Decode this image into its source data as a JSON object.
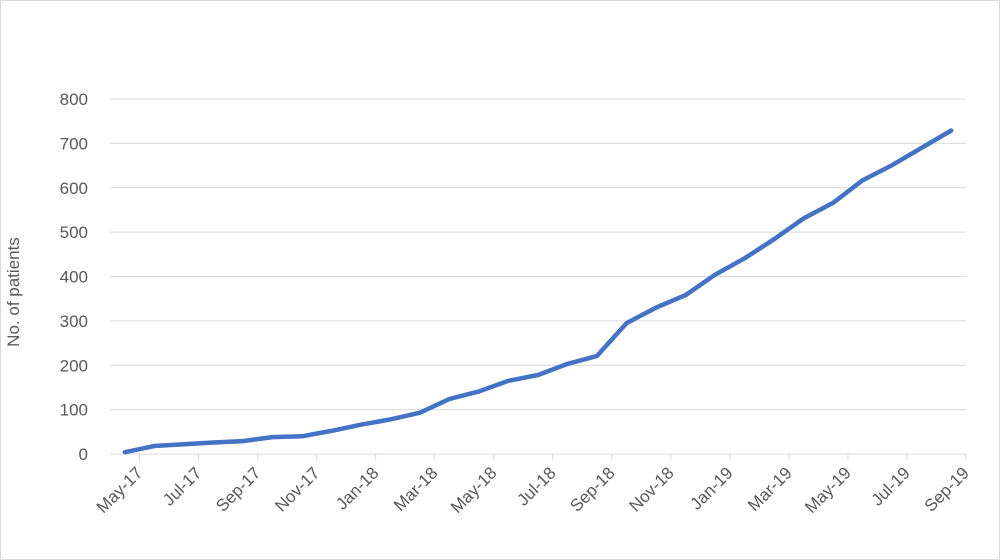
{
  "chart_data": {
    "type": "line",
    "title": "",
    "xlabel": "",
    "ylabel": "No. of patients",
    "ylim": [
      0,
      800
    ],
    "yticks": [
      0,
      100,
      200,
      300,
      400,
      500,
      600,
      700,
      800
    ],
    "xtick_labels": [
      "May-17",
      "Jul-17",
      "Sep-17",
      "Nov-17",
      "Jan-18",
      "Mar-18",
      "May-18",
      "Jul-18",
      "Sep-18",
      "Nov-18",
      "Jan-19",
      "Mar-19",
      "May-19",
      "Jul-19",
      "Sep-19"
    ],
    "grid": true,
    "legend": "none",
    "x": [
      "May-17",
      "Jun-17",
      "Jul-17",
      "Aug-17",
      "Sep-17",
      "Oct-17",
      "Nov-17",
      "Dec-17",
      "Jan-18",
      "Feb-18",
      "Mar-18",
      "Apr-18",
      "May-18",
      "Jun-18",
      "Jul-18",
      "Aug-18",
      "Sep-18",
      "Oct-18",
      "Nov-18",
      "Dec-18",
      "Jan-19",
      "Feb-19",
      "Mar-19",
      "Apr-19",
      "May-19",
      "Jun-19",
      "Jul-19",
      "Aug-19",
      "Sep-19"
    ],
    "series": [
      {
        "color": "#4472c4",
        "values": [
          4,
          18,
          22,
          26,
          29,
          38,
          40,
          52,
          66,
          78,
          93,
          124,
          141,
          165,
          178,
          203,
          221,
          295,
          330,
          358,
          404,
          441,
          484,
          531,
          566,
          617,
          651,
          690,
          729
        ]
      }
    ]
  }
}
